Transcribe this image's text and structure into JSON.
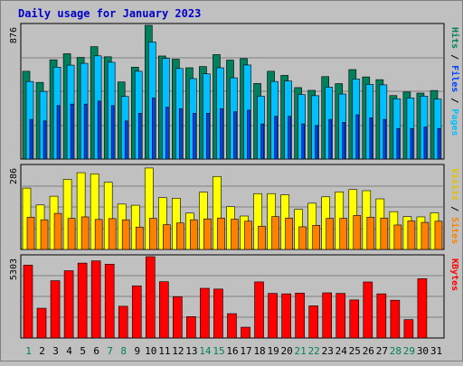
{
  "title": "Daily usage for January 2023",
  "colors": {
    "background": "#C0C0C0",
    "title": "#0000CC",
    "hits": "#00805C",
    "files": "#00C0FF",
    "pages": "#0040FF",
    "visits": "#FFFF00",
    "sites": "#FF8000",
    "kbytes": "#FF0000",
    "weekend_label": "#00805C",
    "weekday_label": "#000000"
  },
  "chart_data": [
    {
      "type": "bar",
      "name": "hits-files-pages",
      "categories": [
        "1",
        "2",
        "3",
        "4",
        "5",
        "6",
        "7",
        "8",
        "9",
        "10",
        "11",
        "12",
        "13",
        "14",
        "15",
        "16",
        "17",
        "18",
        "19",
        "20",
        "21",
        "22",
        "23",
        "24",
        "25",
        "26",
        "27",
        "28",
        "29",
        "30",
        "31"
      ],
      "weekend_days": [
        "1",
        "7",
        "8",
        "14",
        "15",
        "21",
        "22",
        "28",
        "29"
      ],
      "ymax_label": "876",
      "ylim": [
        0,
        876
      ],
      "legend": [
        "Pages",
        "Files",
        "Hits"
      ],
      "series": [
        {
          "name": "Hits",
          "values": [
            575,
            502,
            650,
            690,
            666,
            736,
            670,
            505,
            602,
            876,
            675,
            654,
            598,
            606,
            684,
            648,
            658,
            495,
            575,
            548,
            468,
            450,
            540,
            494,
            586,
            538,
            520,
            416,
            439,
            432,
            449
          ]
        },
        {
          "name": "Files",
          "values": [
            508,
            443,
            602,
            615,
            627,
            676,
            634,
            410,
            575,
            767,
            659,
            593,
            527,
            558,
            598,
            532,
            616,
            412,
            508,
            511,
            422,
            415,
            471,
            426,
            524,
            489,
            486,
            395,
            400,
            412,
            393
          ]
        },
        {
          "name": "Pages",
          "values": [
            260,
            250,
            350,
            360,
            360,
            380,
            350,
            250,
            300,
            400,
            340,
            330,
            300,
            300,
            330,
            310,
            320,
            230,
            280,
            280,
            230,
            220,
            260,
            240,
            290,
            270,
            260,
            200,
            200,
            210,
            200
          ]
        }
      ]
    },
    {
      "type": "bar",
      "name": "visits-sites",
      "categories": [
        "1",
        "2",
        "3",
        "4",
        "5",
        "6",
        "7",
        "8",
        "9",
        "10",
        "11",
        "12",
        "13",
        "14",
        "15",
        "16",
        "17",
        "18",
        "19",
        "20",
        "21",
        "22",
        "23",
        "24",
        "25",
        "26",
        "27",
        "28",
        "29",
        "30",
        "31"
      ],
      "ymax_label": "286",
      "ylim": [
        0,
        286
      ],
      "legend": [
        "Sites",
        "Visits"
      ],
      "series": [
        {
          "name": "Visits",
          "values": [
            211,
            153,
            183,
            241,
            264,
            260,
            231,
            156,
            152,
            280,
            178,
            176,
            125,
            197,
            251,
            147,
            115,
            192,
            192,
            188,
            138,
            159,
            181,
            198,
            206,
            202,
            174,
            130,
            113,
            112,
            126
          ]
        },
        {
          "name": "Sites",
          "values": [
            111,
            102,
            124,
            107,
            112,
            103,
            106,
            102,
            77,
            107,
            85,
            91,
            102,
            105,
            108,
            104,
            97,
            80,
            113,
            108,
            78,
            83,
            107,
            107,
            117,
            111,
            108,
            84,
            98,
            93,
            97
          ]
        }
      ]
    },
    {
      "type": "bar",
      "name": "kbytes",
      "categories": [
        "1",
        "2",
        "3",
        "4",
        "5",
        "6",
        "7",
        "8",
        "9",
        "10",
        "11",
        "12",
        "13",
        "14",
        "15",
        "16",
        "17",
        "18",
        "19",
        "20",
        "21",
        "22",
        "23",
        "24",
        "25",
        "26",
        "27",
        "28",
        "29",
        "30",
        "31"
      ],
      "ymax_label": "5303",
      "ylim": [
        0,
        5303
      ],
      "legend": [
        "KBytes"
      ],
      "series": [
        {
          "name": "KBytes",
          "values": [
            4748,
            1942,
            3736,
            4387,
            4883,
            5028,
            4814,
            2069,
            3400,
            5303,
            3671,
            2689,
            1394,
            3240,
            3191,
            1588,
            704,
            3658,
            2910,
            2879,
            2929,
            2096,
            2945,
            2910,
            2482,
            3654,
            2880,
            2465,
            1200,
            3866,
            0
          ]
        }
      ]
    }
  ]
}
